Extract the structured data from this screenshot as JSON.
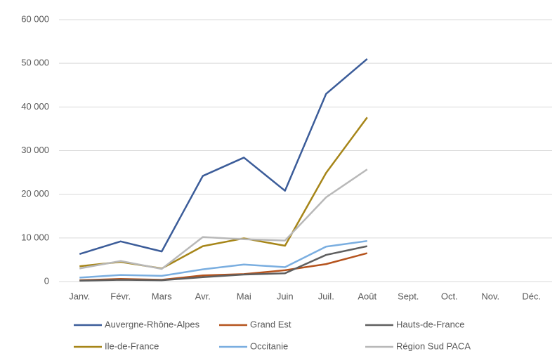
{
  "chart_data": {
    "type": "line",
    "categories": [
      "Janv.",
      "Févr.",
      "Mars",
      "Avr.",
      "Mai",
      "Juin",
      "Juil.",
      "Août",
      "Sept.",
      "Oct.",
      "Nov.",
      "Déc."
    ],
    "series": [
      {
        "name": "Auvergne-Rhône-Alpes",
        "color": "#3b5c99",
        "values": [
          6300,
          9200,
          6900,
          24200,
          28400,
          20800,
          43000,
          51000,
          null,
          null,
          null,
          null
        ]
      },
      {
        "name": "Grand Est",
        "color": "#b5531d",
        "values": [
          300,
          600,
          400,
          1400,
          1700,
          2600,
          4000,
          6500,
          null,
          null,
          null,
          null
        ]
      },
      {
        "name": "Hauts-de-France",
        "color": "#5f5f5f",
        "values": [
          200,
          400,
          300,
          1000,
          1600,
          1900,
          6100,
          8100,
          null,
          null,
          null,
          null
        ]
      },
      {
        "name": "Ile-de-France",
        "color": "#a68518",
        "values": [
          3500,
          4500,
          3000,
          8100,
          9900,
          8200,
          24900,
          37600,
          null,
          null,
          null,
          null
        ]
      },
      {
        "name": "Occitanie",
        "color": "#7aaee0",
        "values": [
          900,
          1500,
          1300,
          2800,
          3900,
          3300,
          8000,
          9300,
          null,
          null,
          null,
          null
        ]
      },
      {
        "name": "Région Sud PACA",
        "color": "#b8b8b8",
        "values": [
          3000,
          4700,
          2900,
          10200,
          9700,
          9400,
          19300,
          25700,
          null,
          null,
          null,
          null
        ]
      }
    ],
    "ylim": [
      0,
      60000
    ],
    "yticks": [
      0,
      {
        "value": 10000,
        "label": "10 000"
      },
      {
        "value": 20000,
        "label": "20 000"
      },
      {
        "value": 30000,
        "label": "30 000"
      },
      {
        "value": 40000,
        "label": "40 000"
      },
      {
        "value": 50000,
        "label": "50 000"
      },
      {
        "value": 60000,
        "label": "60 000"
      }
    ],
    "grid": true
  }
}
